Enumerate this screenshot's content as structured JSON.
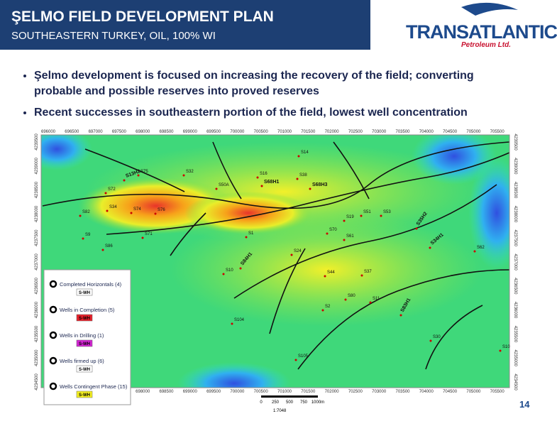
{
  "header": {
    "title": "ŞELMO FIELD DEVELOPMENT PLAN",
    "subtitle": "SOUTHEASTERN TURKEY, OIL, 100% WI"
  },
  "logo": {
    "name": "TRANSATLANTIC",
    "tagline": "Petroleum Ltd."
  },
  "bullets": [
    "Şelmo development is focused on increasing the recovery of the field; converting probable and possible reserves into proved reserves",
    "Recent successes in southeastern portion of the field, lowest well concentration"
  ],
  "map": {
    "x_labels": [
      696000,
      696500,
      697000,
      697500,
      698000,
      698500,
      699000,
      699500,
      700000,
      700500,
      701000,
      701500,
      702000,
      702500,
      703000,
      703500,
      704000,
      704500,
      705000,
      705500
    ],
    "y_labels": [
      4239500,
      4239000,
      4238500,
      4238000,
      4237500,
      4237000,
      4236500,
      4236000,
      4235500,
      4235000,
      4234500
    ],
    "well_labels": [
      "S13H2",
      "S75",
      "S32",
      "S14",
      "S16",
      "S38",
      "S68H1",
      "S68H3",
      "S50A",
      "S72",
      "S82",
      "S34",
      "S74",
      "S76",
      "S19",
      "S51",
      "S53",
      "S35H2",
      "S34H1",
      "S70",
      "S61",
      "S1",
      "S86",
      "S71",
      "S24",
      "S10",
      "S84H1",
      "S44",
      "S37",
      "S80",
      "S11",
      "S2",
      "S104",
      "S105",
      "S83H1",
      "S30",
      "S10",
      "S62",
      "S9"
    ],
    "scale": {
      "ticks": [
        "0",
        "250",
        "500",
        "750",
        "1000m"
      ],
      "ratio": "1:7048"
    }
  },
  "legend": {
    "items": [
      {
        "label": "Completed Horizontals (4)",
        "tag": "S-WH"
      },
      {
        "label": "Wells in Completion (5)",
        "tag": "S-WH"
      },
      {
        "label": "Wells in Drilling (1)",
        "tag": "S-WH"
      },
      {
        "label": "Wells firmed up (6)",
        "tag": "S-WH"
      },
      {
        "label": "Wells Contingent Phase (15)",
        "tag": "S-WH"
      }
    ]
  },
  "page_number": "14"
}
